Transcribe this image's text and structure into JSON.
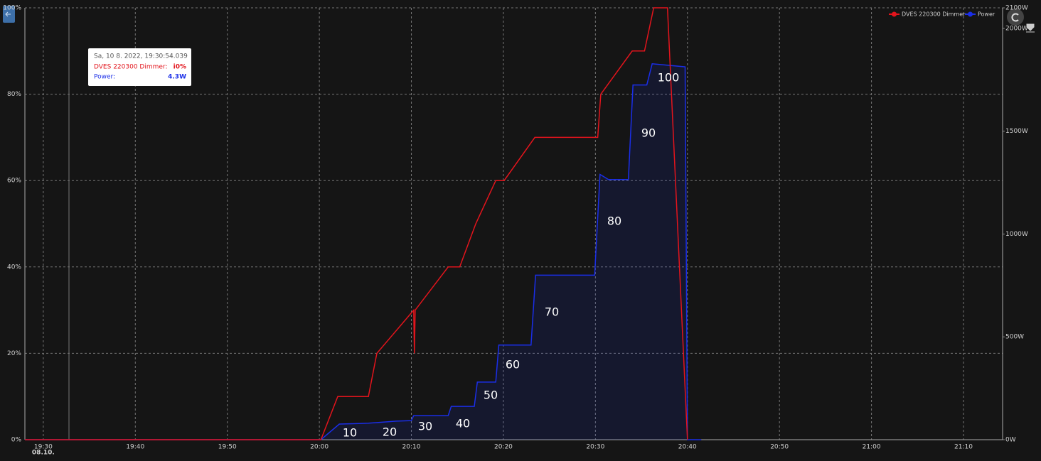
{
  "chart_data": {
    "type": "line",
    "x_date_label": "08.10.",
    "xlim": [
      "19:28:00",
      "21:14:15"
    ],
    "xticks": [
      "19:30",
      "19:40",
      "19:50",
      "20:00",
      "20:10",
      "20:20",
      "20:30",
      "20:40",
      "20:50",
      "21:00",
      "21:10"
    ],
    "ylim": [
      0,
      100
    ],
    "yticks": [
      {
        "value": 0,
        "label": "0%"
      },
      {
        "value": 20,
        "label": "20%"
      },
      {
        "value": 40,
        "label": "40%"
      },
      {
        "value": 60,
        "label": "60%"
      },
      {
        "value": 80,
        "label": "80%"
      },
      {
        "value": 100,
        "label": "100%"
      }
    ],
    "y2lim": [
      0,
      2100
    ],
    "y2ticks": [
      {
        "value": 0,
        "label": "0W"
      },
      {
        "value": 500,
        "label": "500W"
      },
      {
        "value": 1000,
        "label": "1000W"
      },
      {
        "value": 1500,
        "label": "1500W"
      },
      {
        "value": 2000,
        "label": "2000W"
      },
      {
        "value": 2100,
        "label": "2100W"
      }
    ],
    "grid": true,
    "legend": "top-right",
    "series": [
      {
        "name": "DVES 220300  Dimmer",
        "color": "#e3141c",
        "x": [
          "19:28:00",
          "20:00:10",
          "20:02:00",
          "20:05:20",
          "20:06:15",
          "20:10:15",
          "20:10:20",
          "20:10:25",
          "20:14:00",
          "20:15:15",
          "20:17:00",
          "20:19:10",
          "20:20:05",
          "20:23:25",
          "20:30:15",
          "20:30:35",
          "20:34:00",
          "20:35:20",
          "20:36:20",
          "20:37:50",
          "20:40:00"
        ],
        "values": [
          0,
          0,
          10,
          10,
          20,
          30,
          20,
          30,
          40,
          40,
          50,
          60,
          60,
          70,
          70,
          80,
          90,
          90,
          100,
          100,
          0
        ]
      },
      {
        "name": "Power",
        "color": "#1a2ee8",
        "axis": "y2",
        "x": [
          "19:28:00",
          "20:00:10",
          "20:02:10",
          "20:05:20",
          "20:06:10",
          "20:08:20",
          "20:10:00",
          "20:10:15",
          "20:14:00",
          "20:14:20",
          "20:16:50",
          "20:17:10",
          "20:19:10",
          "20:19:30",
          "20:23:00",
          "20:23:15",
          "20:23:30",
          "20:29:55",
          "20:30:30",
          "20:31:25",
          "20:33:35",
          "20:34:05",
          "20:35:35",
          "20:36:10",
          "20:39:45",
          "20:40:00",
          "20:41:30"
        ],
        "values": [
          0,
          0,
          76,
          80,
          83,
          90,
          93,
          117,
          117,
          162,
          162,
          280,
          280,
          460,
          460,
          630,
          800,
          800,
          1290,
          1265,
          1265,
          1725,
          1725,
          1828,
          1813,
          0,
          0
        ]
      }
    ],
    "annotations": [
      "10",
      "20",
      "30",
      "40",
      "50",
      "60",
      "70",
      "80",
      "90",
      "100"
    ],
    "tooltip": {
      "time": "Sa, 10 8. 2022, 19:30:54.039",
      "rows": [
        {
          "name": "DVES 220300 Dimmer:",
          "value": "i0%"
        },
        {
          "name": "Power:",
          "value": "4.3W"
        }
      ]
    }
  }
}
